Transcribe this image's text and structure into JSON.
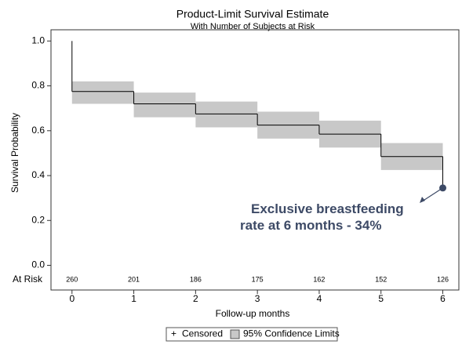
{
  "chart_data": {
    "type": "step",
    "title": "Product-Limit Survival Estimate",
    "subtitle": "With Number of Subjects at Risk",
    "xlabel": "Follow-up months",
    "ylabel": "Survival Probability",
    "x": [
      0,
      0,
      1,
      2,
      3,
      4,
      5,
      6
    ],
    "values": [
      1.0,
      0.775,
      0.72,
      0.675,
      0.625,
      0.585,
      0.485,
      0.345
    ],
    "color": "#000000",
    "band": {
      "name": "95% Confidence Limits",
      "color": "#c8c8c8",
      "edges": [
        0,
        1,
        2,
        3,
        4,
        5,
        6
      ],
      "lower": [
        0.72,
        0.66,
        0.615,
        0.565,
        0.525,
        0.425
      ],
      "upper": [
        0.82,
        0.77,
        0.73,
        0.685,
        0.645,
        0.545
      ]
    },
    "censored": {
      "name": "Censored"
    },
    "at_risk": {
      "label": "At Risk",
      "x": [
        0,
        1,
        2,
        3,
        4,
        5,
        6
      ],
      "values": [
        260,
        201,
        186,
        175,
        162,
        152,
        126
      ]
    },
    "annotation": {
      "lines": [
        "Exclusive breastfeeding",
        "rate at 6 months - 34%"
      ],
      "color": "#3d4a66"
    },
    "xlim": [
      -0.34,
      6.26
    ],
    "ylim": [
      -0.11,
      1.05
    ],
    "xticks": [
      0,
      1,
      2,
      3,
      4,
      5,
      6
    ],
    "yticks": [
      {
        "value": 0,
        "label": "0.0"
      },
      {
        "value": 0.2,
        "label": "0.2"
      },
      {
        "value": 0.4,
        "label": "0.4"
      },
      {
        "value": 0.6,
        "label": "0.6"
      },
      {
        "value": 0.8,
        "label": "0.8"
      },
      {
        "value": 1.0,
        "label": "1.0"
      }
    ]
  }
}
